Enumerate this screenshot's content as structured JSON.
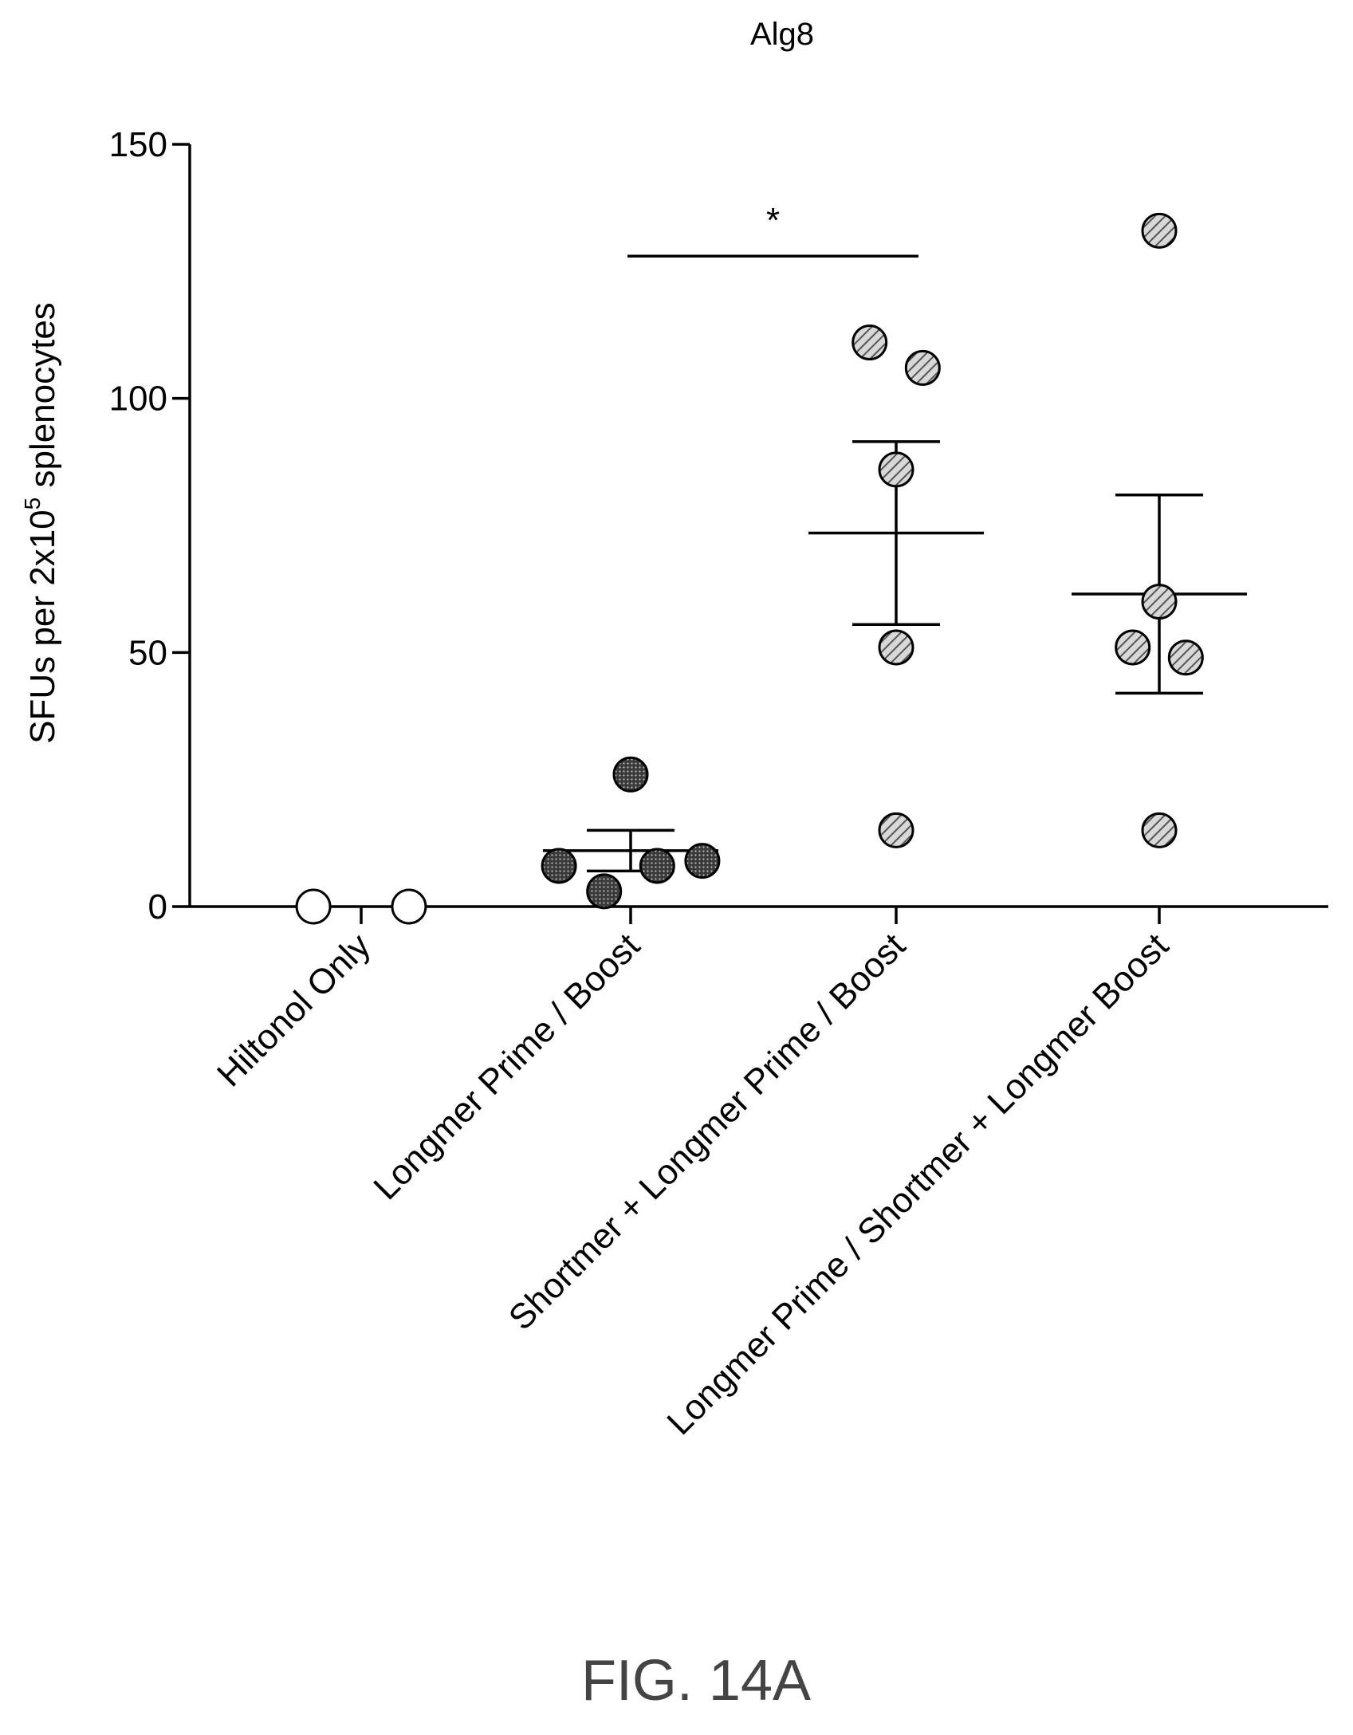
{
  "figure": {
    "caption": "FIG. 14A"
  },
  "chart_data": {
    "type": "scatter",
    "title": "Alg8",
    "ylabel": "SFUs per 2x10^5 splenocytes",
    "ylabel_parts": {
      "pre": "SFUs per 2x10",
      "sup": "5",
      "post": " splenocytes"
    },
    "xlabel": "",
    "ylim": [
      0,
      150
    ],
    "yticks": [
      "0",
      "50",
      "100",
      "150"
    ],
    "ytick_values": [
      0,
      50,
      100,
      150
    ],
    "grid": false,
    "legend": "none",
    "categories": [
      "Hiltonol Only",
      "Longmer Prime / Boost",
      "Shortmer + Longmer Prime / Boost",
      "Longmer Prime / Shortmer + Longmer Boost"
    ],
    "groups": [
      {
        "category": "Hiltonol Only",
        "points": [
          0,
          0
        ],
        "mean": null,
        "sem": null,
        "marker": "open",
        "jitter": [
          -0.18,
          0.18
        ]
      },
      {
        "category": "Longmer Prime / Boost",
        "points": [
          26,
          8,
          3,
          8,
          9
        ],
        "mean": 11,
        "sem": 4,
        "marker": "dotted",
        "jitter": [
          0,
          -0.27,
          -0.1,
          0.1,
          0.27
        ]
      },
      {
        "category": "Shortmer + Longmer Prime / Boost",
        "points": [
          111,
          106,
          86,
          51,
          15
        ],
        "mean": 73.5,
        "sem": 18,
        "marker": "hatched",
        "jitter": [
          -0.1,
          0.1,
          0,
          0,
          0
        ]
      },
      {
        "category": "Longmer Prime / Shortmer + Longmer Boost",
        "points": [
          133,
          60,
          51,
          49,
          15
        ],
        "mean": 61.5,
        "sem": 19.5,
        "marker": "hatched",
        "jitter": [
          0,
          0,
          -0.1,
          0.1,
          0
        ]
      }
    ],
    "significance": [
      {
        "from": "Longmer Prime / Boost",
        "to": "Shortmer + Longmer Prime / Boost",
        "label": "*",
        "y": 128
      }
    ],
    "colors": {
      "axis": "#000000",
      "dotted_fill": "#555555",
      "hatched_fill": "#9a9a9a",
      "open_fill": "#ffffff"
    }
  }
}
